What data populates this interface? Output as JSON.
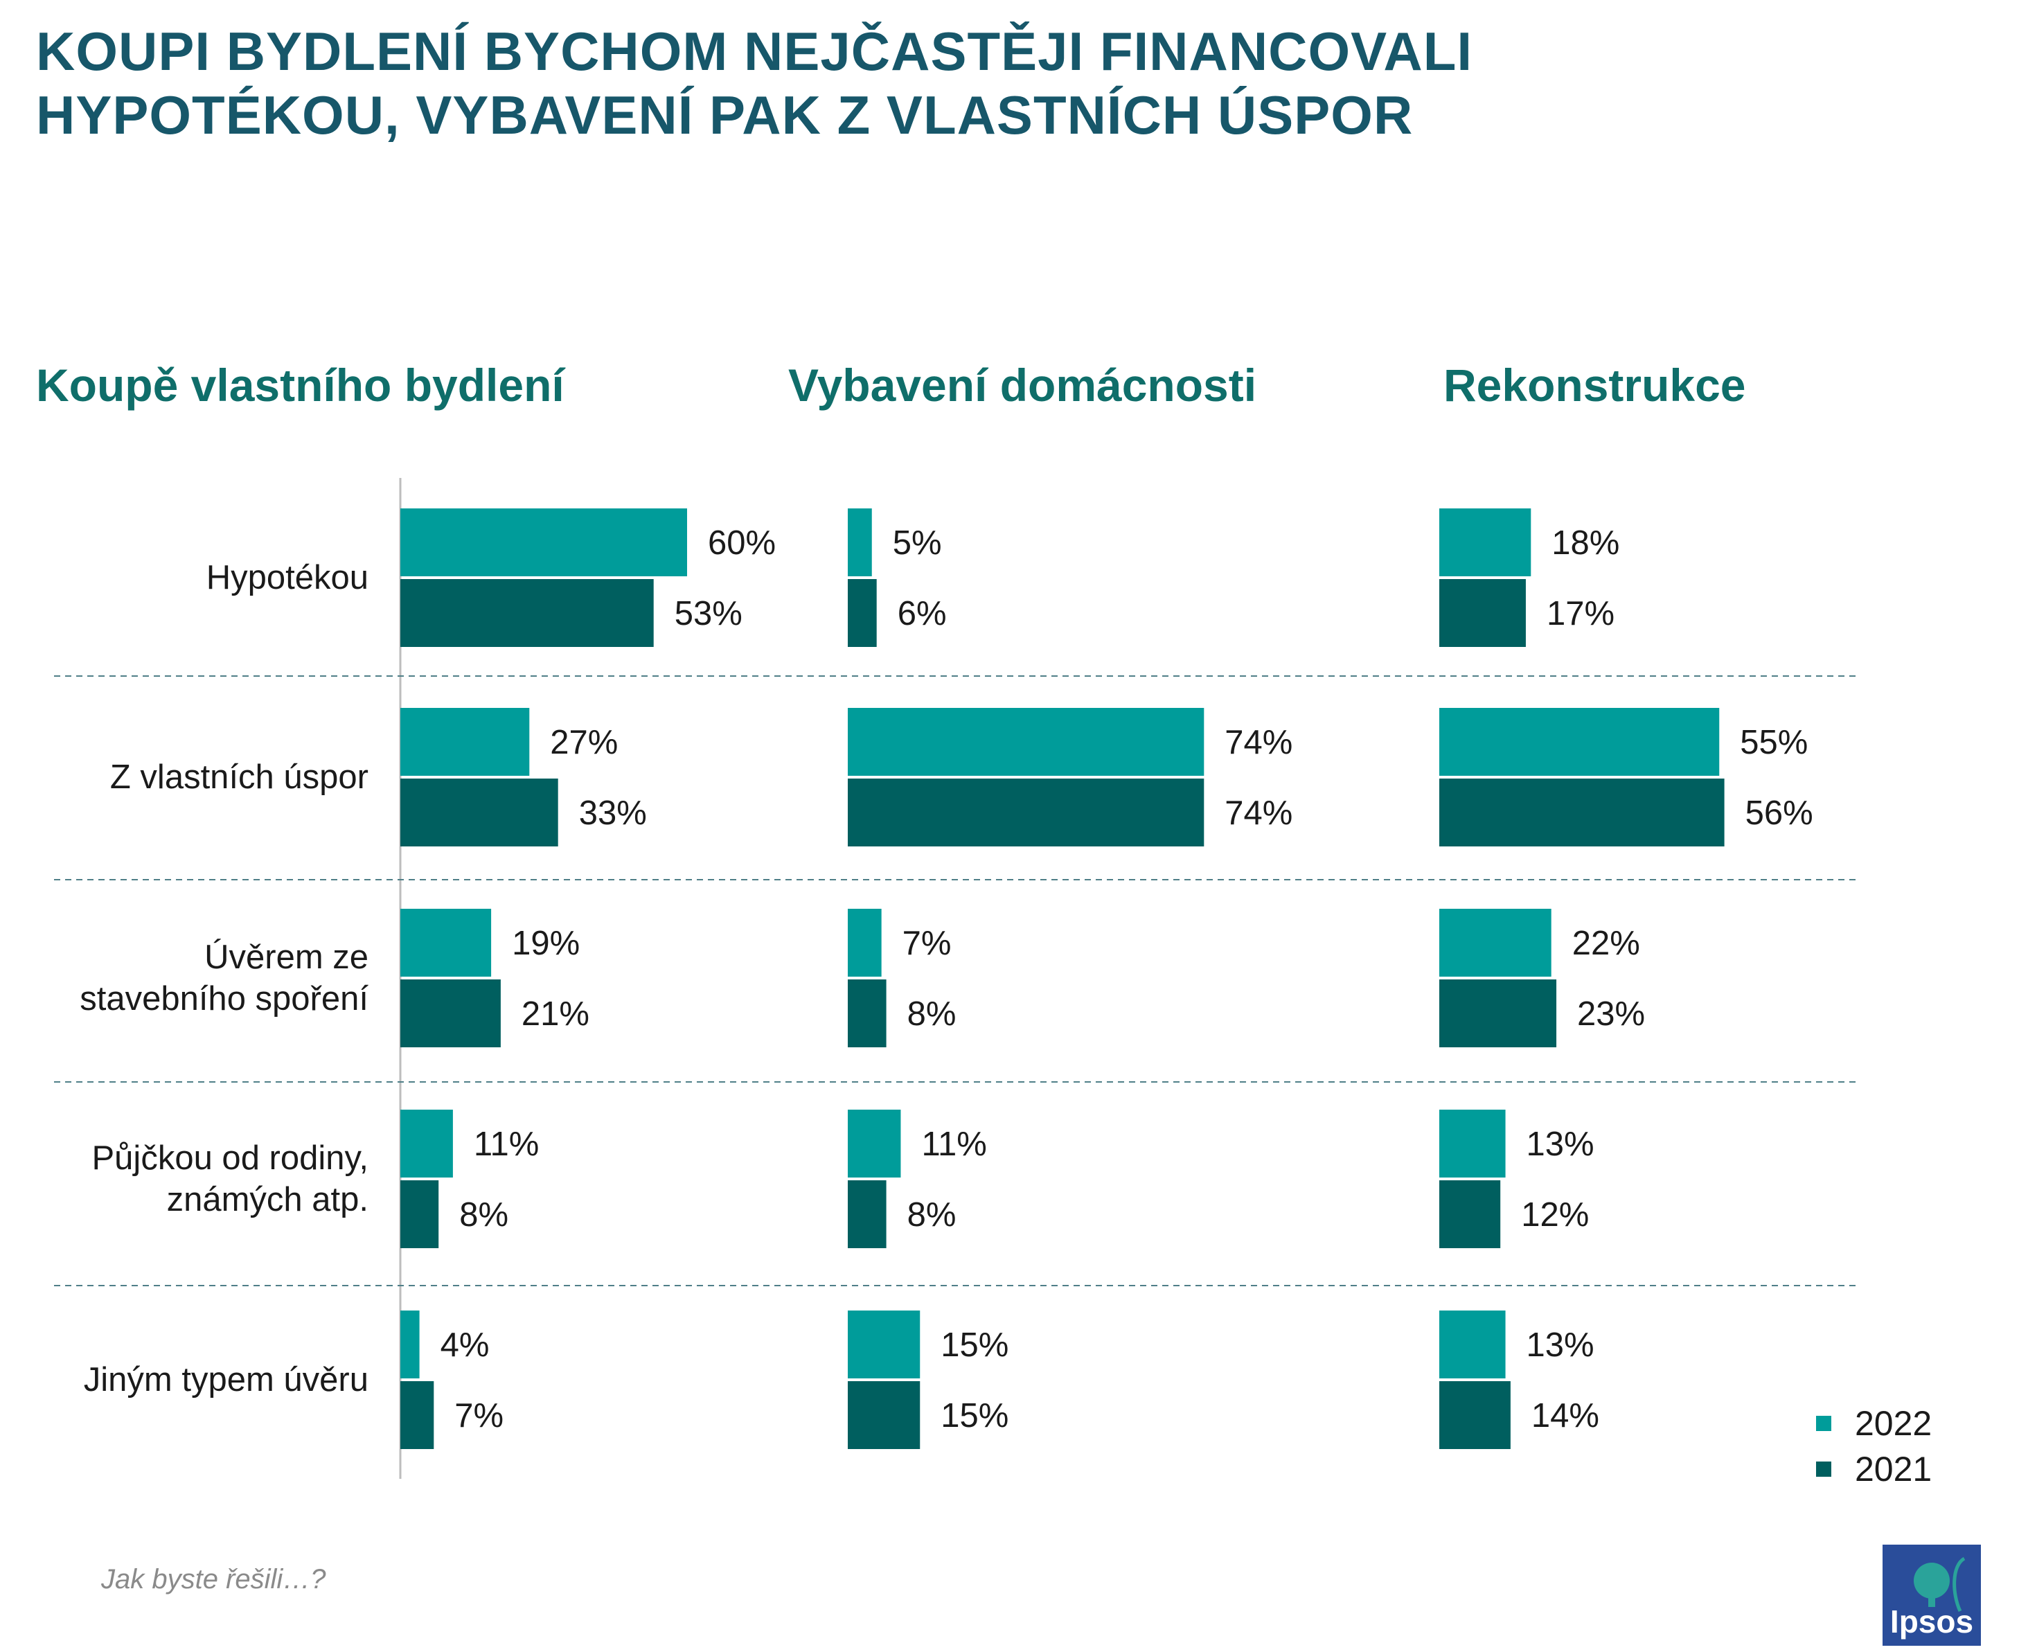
{
  "title": {
    "line1": "KOUPI BYDLENÍ BYCHOM NEJČASTĚJI FINANCOVALI",
    "line2": "HYPOTÉKOU, VYBAVENÍ PAK Z VLASTNÍCH ÚSPOR"
  },
  "colors": {
    "series_2022": "#009c9a",
    "series_2021": "#005f5f",
    "title": "#17576a",
    "panel_title": "#0f6e6a",
    "logo": "#2a4d9a"
  },
  "footnote": "Jak byste řešili…?",
  "logo_text": "Ipsos",
  "categories": [
    "Hypotékou",
    "Z vlastních úspor",
    "Úvěrem ze stavebního spoření",
    "Půjčkou od rodiny, známých atp.",
    "Jiným typem úvěru"
  ],
  "category_lines": [
    [
      "Hypotékou"
    ],
    [
      "Z vlastních úspor"
    ],
    [
      "Úvěrem ze",
      "stavebního spoření"
    ],
    [
      "Půjčkou od rodiny,",
      "známých atp."
    ],
    [
      "Jiným typem úvěru"
    ]
  ],
  "legend": [
    {
      "label": "2022",
      "color": "#009c9a"
    },
    {
      "label": "2021",
      "color": "#005f5f"
    }
  ],
  "chart_data": [
    {
      "type": "bar",
      "orientation": "horizontal",
      "title": "Koupě vlastního bydlení",
      "categories": [
        "Hypotékou",
        "Z vlastních úspor",
        "Úvěrem ze stavebního spoření",
        "Půjčkou od rodiny, známých atp.",
        "Jiným typem úvěru"
      ],
      "series": [
        {
          "name": "2022",
          "values": [
            60,
            27,
            19,
            11,
            4
          ]
        },
        {
          "name": "2021",
          "values": [
            53,
            33,
            21,
            8,
            7
          ]
        }
      ],
      "unit": "%"
    },
    {
      "type": "bar",
      "orientation": "horizontal",
      "title": "Vybavení domácnosti",
      "categories": [
        "Hypotékou",
        "Z vlastních úspor",
        "Úvěrem ze stavebního spoření",
        "Půjčkou od rodiny, známých atp.",
        "Jiným typem úvěru"
      ],
      "series": [
        {
          "name": "2022",
          "values": [
            5,
            74,
            7,
            11,
            15
          ]
        },
        {
          "name": "2021",
          "values": [
            6,
            74,
            8,
            8,
            15
          ]
        }
      ],
      "unit": "%"
    },
    {
      "type": "bar",
      "orientation": "horizontal",
      "title": "Rekonstrukce",
      "categories": [
        "Hypotékou",
        "Z vlastních úspor",
        "Úvěrem ze stavebního spoření",
        "Půjčkou od rodiny, známých atp.",
        "Jiným typem úvěru"
      ],
      "series": [
        {
          "name": "2022",
          "values": [
            18,
            55,
            22,
            13,
            13
          ]
        },
        {
          "name": "2021",
          "values": [
            17,
            56,
            23,
            12,
            14
          ]
        }
      ],
      "unit": "%"
    }
  ]
}
